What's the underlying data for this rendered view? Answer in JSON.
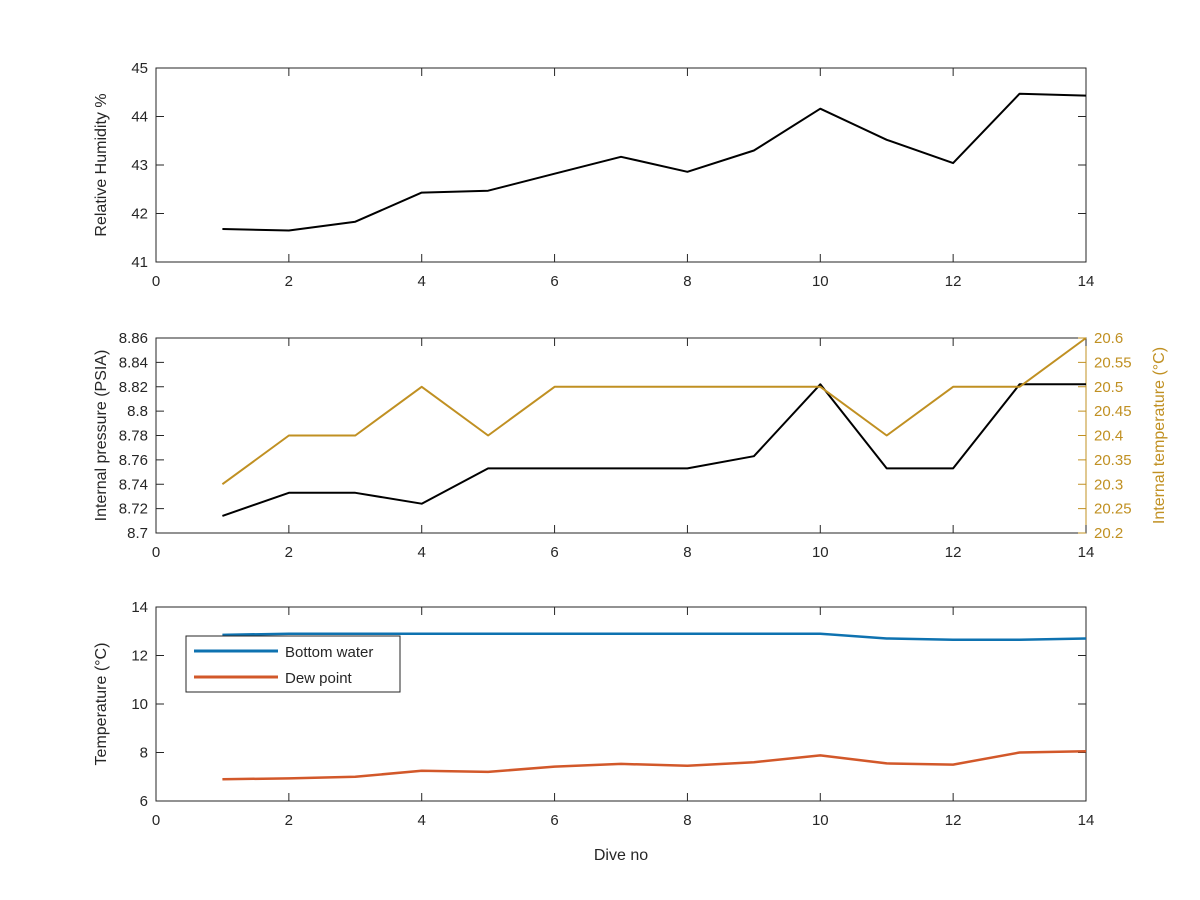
{
  "figure": {
    "xlabel": "Dive no"
  },
  "chart_data": [
    {
      "type": "line",
      "title": "",
      "xlabel": "",
      "ylabel": "Relative Humidity %",
      "xlim": [
        0,
        14
      ],
      "ylim": [
        41,
        45
      ],
      "xticks": [
        0,
        2,
        4,
        6,
        8,
        10,
        12,
        14
      ],
      "yticks": [
        41,
        42,
        43,
        44,
        45
      ],
      "grid": false,
      "series": [
        {
          "name": "",
          "color": "#000000",
          "x": [
            1,
            2,
            3,
            4,
            5,
            6,
            7,
            8,
            9,
            10,
            11,
            12,
            13,
            14
          ],
          "y": [
            41.68,
            41.65,
            41.83,
            42.43,
            42.47,
            42.82,
            43.17,
            42.86,
            43.3,
            44.16,
            43.52,
            43.04,
            44.47,
            44.43
          ]
        }
      ]
    },
    {
      "type": "line",
      "title": "",
      "xlabel": "",
      "ylabel": "Internal pressure (PSIA)",
      "ylabel_right": "Internal temperature (°C)",
      "xlim": [
        0,
        14
      ],
      "ylim": [
        8.7,
        8.86
      ],
      "ylim_right": [
        20.2,
        20.6
      ],
      "xticks": [
        0,
        2,
        4,
        6,
        8,
        10,
        12,
        14
      ],
      "yticks": [
        "8.7",
        "8.72",
        "8.74",
        "8.76",
        "8.78",
        "8.8",
        "8.82",
        "8.84",
        "8.86"
      ],
      "yticks_right": [
        "20.2",
        "20.25",
        "20.3",
        "20.35",
        "20.4",
        "20.45",
        "20.5",
        "20.55",
        "20.6"
      ],
      "right_axis_color": "#C09022",
      "grid": false,
      "series": [
        {
          "name": "",
          "color": "#000000",
          "axis": "left",
          "x": [
            1,
            2,
            3,
            4,
            5,
            6,
            7,
            8,
            9,
            10,
            11,
            12,
            13,
            14
          ],
          "y": [
            8.714,
            8.733,
            8.733,
            8.724,
            8.753,
            8.753,
            8.753,
            8.753,
            8.763,
            8.822,
            8.753,
            8.753,
            8.822,
            8.822
          ]
        },
        {
          "name": "",
          "color": "#C09022",
          "axis": "right",
          "x": [
            1,
            2,
            3,
            4,
            5,
            6,
            7,
            8,
            9,
            10,
            11,
            12,
            13,
            14
          ],
          "y": [
            20.3,
            20.4,
            20.4,
            20.5,
            20.4,
            20.5,
            20.5,
            20.5,
            20.5,
            20.5,
            20.4,
            20.5,
            20.5,
            20.6
          ]
        }
      ]
    },
    {
      "type": "line",
      "title": "",
      "xlabel": "Dive no",
      "ylabel": "Temperature (°C)",
      "xlim": [
        0,
        14
      ],
      "ylim": [
        6,
        14
      ],
      "xticks": [
        0,
        2,
        4,
        6,
        8,
        10,
        12,
        14
      ],
      "yticks": [
        6,
        8,
        10,
        12,
        14
      ],
      "grid": false,
      "legend": {
        "position": "top-left"
      },
      "series": [
        {
          "name": "Bottom water",
          "color": "#0E72B0",
          "x": [
            1,
            2,
            3,
            4,
            5,
            6,
            7,
            8,
            9,
            10,
            11,
            12,
            13,
            14
          ],
          "y": [
            12.85,
            12.9,
            12.9,
            12.9,
            12.9,
            12.9,
            12.9,
            12.9,
            12.9,
            12.9,
            12.7,
            12.65,
            12.65,
            12.7
          ]
        },
        {
          "name": "Dew point",
          "color": "#D2582A",
          "x": [
            1,
            2,
            3,
            4,
            5,
            6,
            7,
            8,
            9,
            10,
            11,
            12,
            13,
            14
          ],
          "y": [
            6.9,
            6.93,
            7.0,
            7.25,
            7.2,
            7.42,
            7.53,
            7.45,
            7.6,
            7.88,
            7.55,
            7.5,
            8.0,
            8.05
          ]
        }
      ]
    }
  ]
}
